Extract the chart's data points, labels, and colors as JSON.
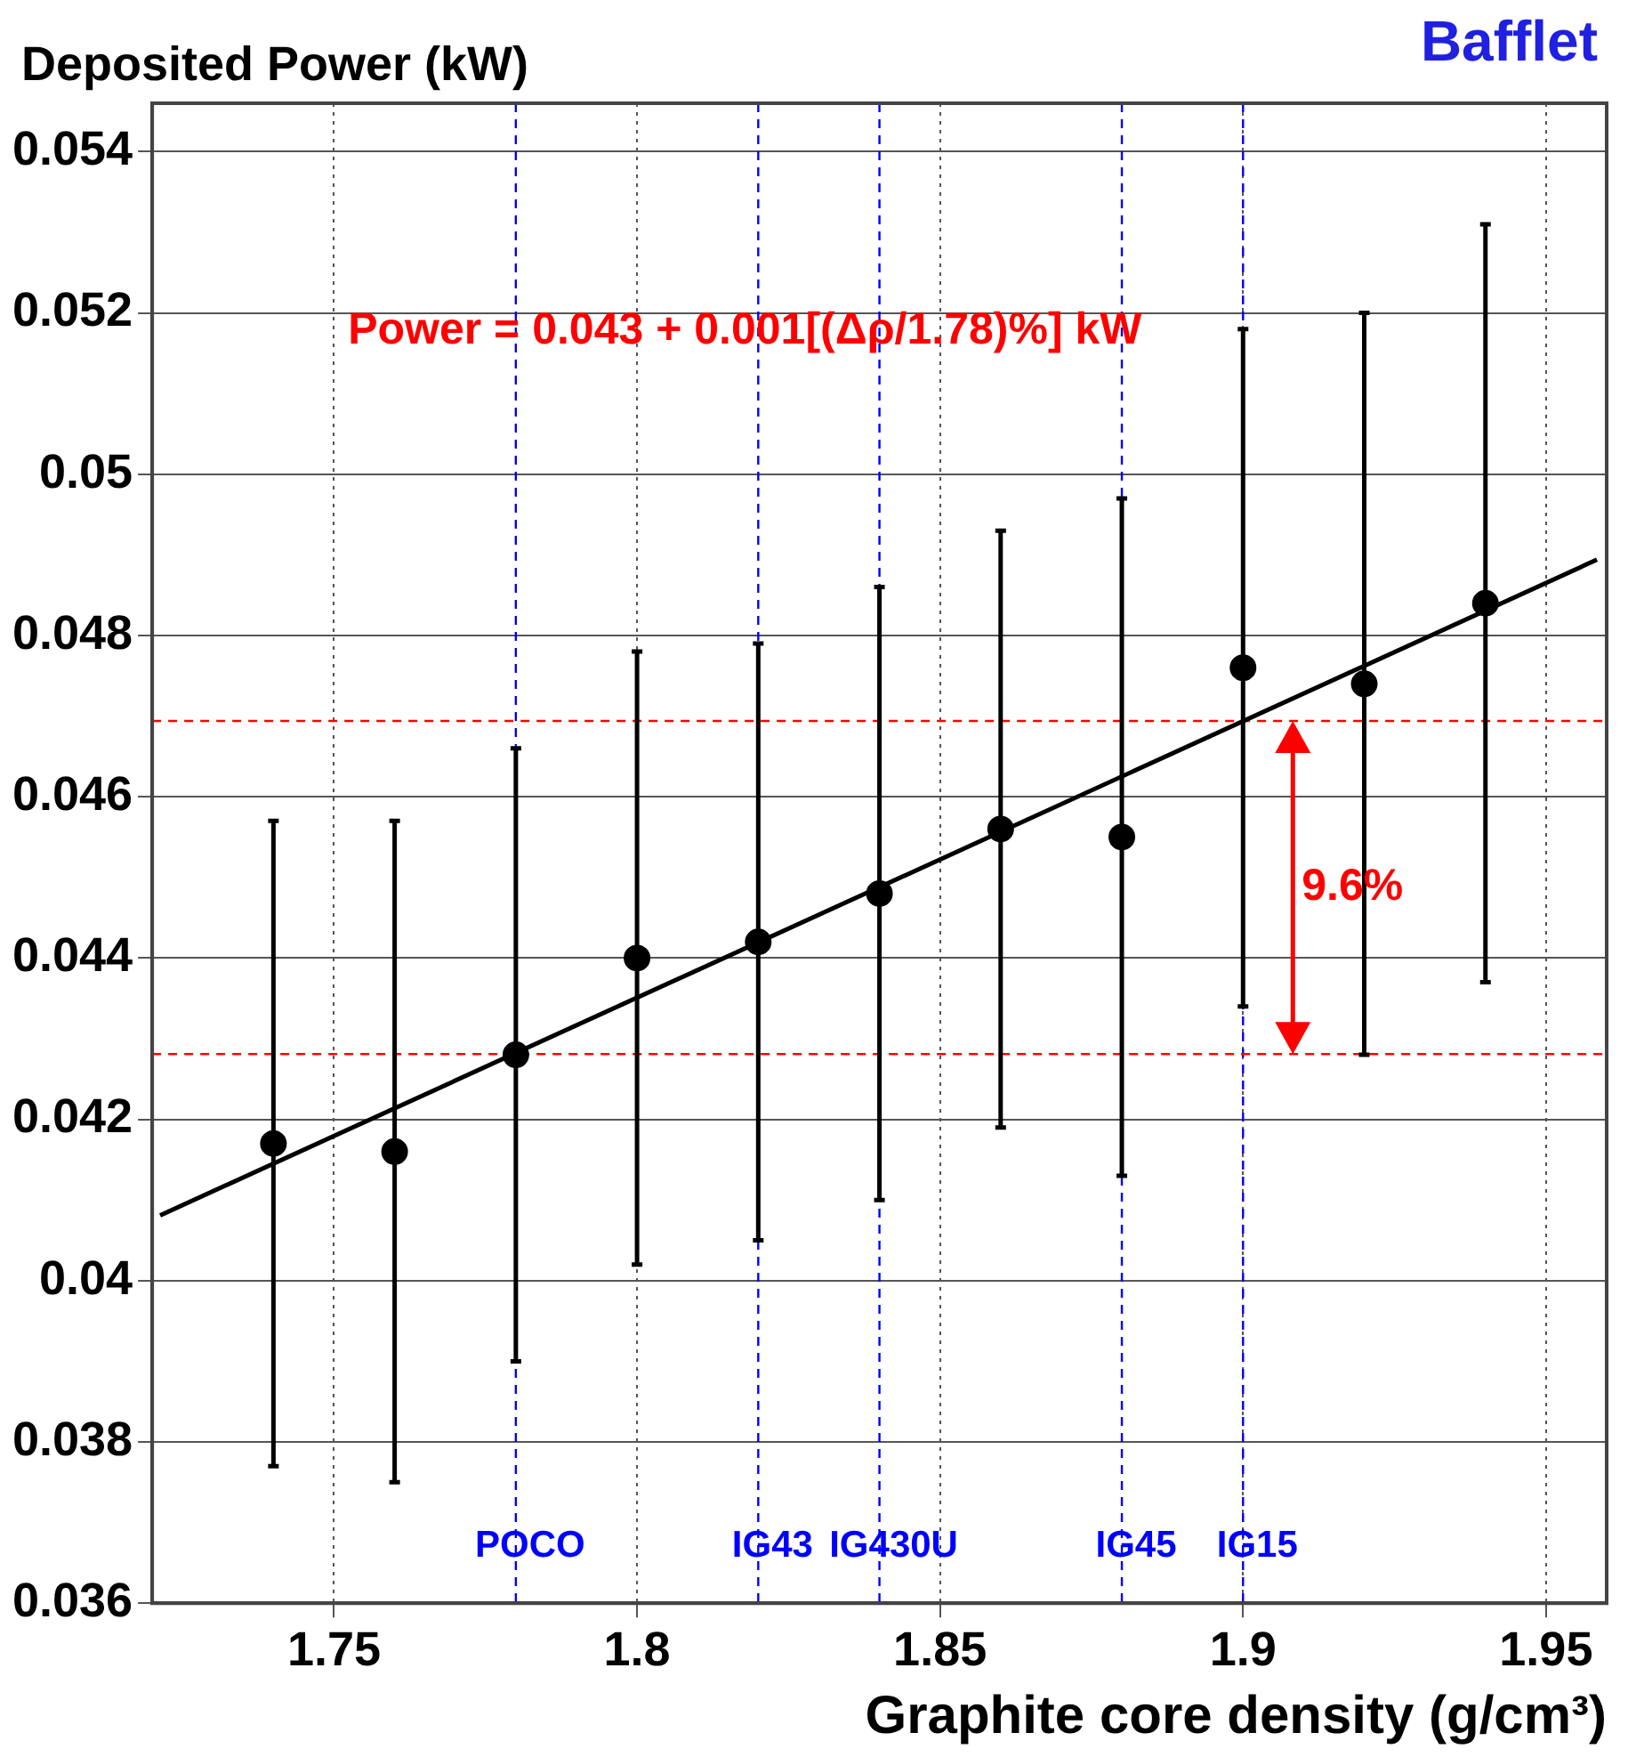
{
  "chart_data": {
    "type": "scatter",
    "title": "Deposited Power (kW)",
    "xlabel": "Graphite core density (g/cm³)",
    "xlim": [
      1.72,
      1.96
    ],
    "xticks": [
      1.75,
      1.8,
      1.85,
      1.9,
      1.95
    ],
    "ylim": [
      0.036,
      0.0546
    ],
    "yticks": [
      0.036,
      0.038,
      0.04,
      0.042,
      0.044,
      0.046,
      0.048,
      0.05,
      0.052,
      0.054
    ],
    "grid": true,
    "legend": false,
    "series": [
      {
        "marker": "circle",
        "color": "#000000",
        "x": [
          1.74,
          1.76,
          1.78,
          1.8,
          1.82,
          1.84,
          1.86,
          1.88,
          1.9,
          1.92,
          1.94
        ],
        "values": [
          0.0417,
          0.0416,
          0.0428,
          0.044,
          0.0442,
          0.0448,
          0.0456,
          0.0455,
          0.0476,
          0.0474,
          0.0484
        ],
        "errors": [
          0.004,
          0.0041,
          0.0038,
          0.0038,
          0.0037,
          0.0038,
          0.0037,
          0.0042,
          0.0042,
          0.0046,
          0.0047
        ]
      },
      {
        "type": "line",
        "color": "#000000",
        "line_style": "solid",
        "x": [
          1.7213,
          1.9584
        ],
        "values": [
          0.04081,
          0.04894
        ]
      }
    ],
    "ref_lines": [
      {
        "axis": "x",
        "value": 1.78,
        "label": "POCO",
        "color": "#0000ff",
        "line_style": "dashed"
      },
      {
        "axis": "x",
        "value": 1.82,
        "label": "IG43",
        "color": "#0000ff",
        "line_style": "dashed"
      },
      {
        "axis": "x",
        "value": 1.84,
        "label": "IG430U",
        "color": "#0000ff",
        "line_style": "dashed"
      },
      {
        "axis": "x",
        "value": 1.88,
        "label": "IG45",
        "color": "#0000ff",
        "line_style": "dashed"
      },
      {
        "axis": "x",
        "value": 1.9,
        "label": "IG15",
        "color": "#0000ff",
        "line_style": "dashed"
      },
      {
        "axis": "y",
        "value": 0.04694,
        "color": "#ff0000",
        "line_style": "dashed"
      },
      {
        "axis": "y",
        "value": 0.04281,
        "color": "#ff0000",
        "line_style": "dashed"
      }
    ],
    "annotations": [
      "Bafflet",
      "Power = 0.043 + 0.001[(Δρ/1.78)%] kW",
      "9.6%"
    ]
  }
}
